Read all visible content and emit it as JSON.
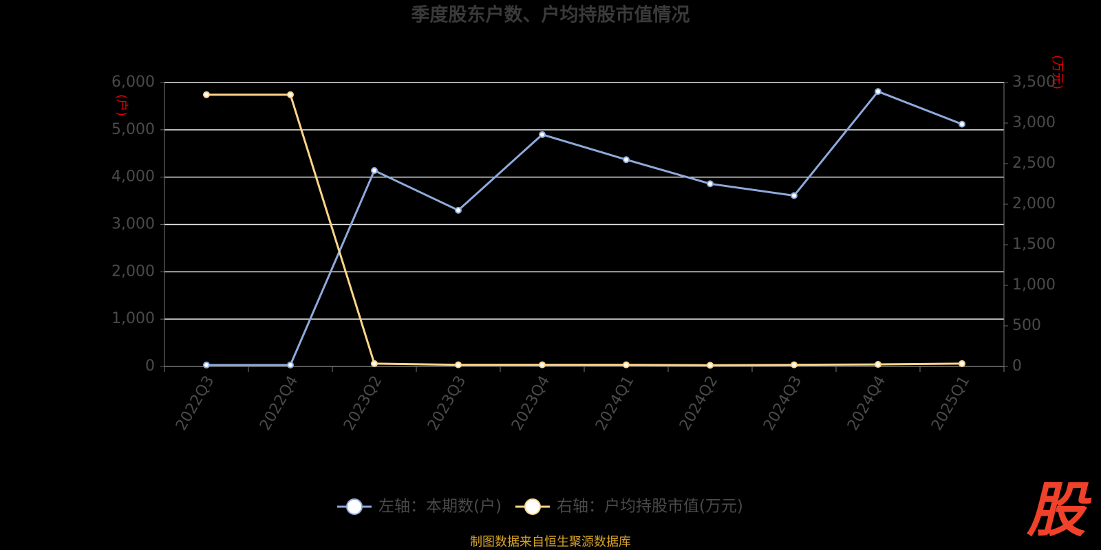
{
  "chart_data": {
    "type": "line",
    "title": "季度股东户数、户均持股市值情况",
    "y_unit": "(户)",
    "y2_unit": "(万元)",
    "categories": [
      "2022Q3",
      "2022Q4",
      "2023Q2",
      "2023Q3",
      "2023Q4",
      "2024Q1",
      "2024Q2",
      "2024Q3",
      "2024Q4",
      "2025Q1"
    ],
    "series": [
      {
        "name": "左轴：本期数(户)",
        "color": "#8eaadb",
        "values": [
          30,
          30,
          4140,
          3300,
          4900,
          4370,
          3860,
          3610,
          5810,
          5120
        ]
      },
      {
        "name": "右轴：户均持股市值(万元)",
        "color": "#ffd68a",
        "axis": "y2",
        "values": [
          3350,
          3350,
          35,
          20,
          20,
          20,
          15,
          20,
          25,
          35
        ]
      }
    ],
    "ylim": [
      0,
      6000
    ],
    "yticks": [
      0,
      {
        "value": 1000,
        "label": "1,000"
      },
      {
        "value": 2000,
        "label": "2,000"
      },
      {
        "value": 3000,
        "label": "3,000"
      },
      {
        "value": 4000,
        "label": "4,000"
      },
      {
        "value": 5000,
        "label": "5,000"
      },
      {
        "value": 6000,
        "label": "6,000"
      }
    ],
    "y2lim": [
      0,
      3500
    ],
    "y2ticks": [
      0,
      500,
      {
        "value": 1000,
        "label": "1,000"
      },
      {
        "value": 1500,
        "label": "1,500"
      },
      {
        "value": 2000,
        "label": "2,000"
      },
      {
        "value": 2500,
        "label": "2,500"
      },
      {
        "value": 3000,
        "label": "3,000"
      },
      {
        "value": 3500,
        "label": "3,500"
      }
    ],
    "grid": true,
    "source": "制图数据来自恒生聚源数据库",
    "logo": "股"
  }
}
